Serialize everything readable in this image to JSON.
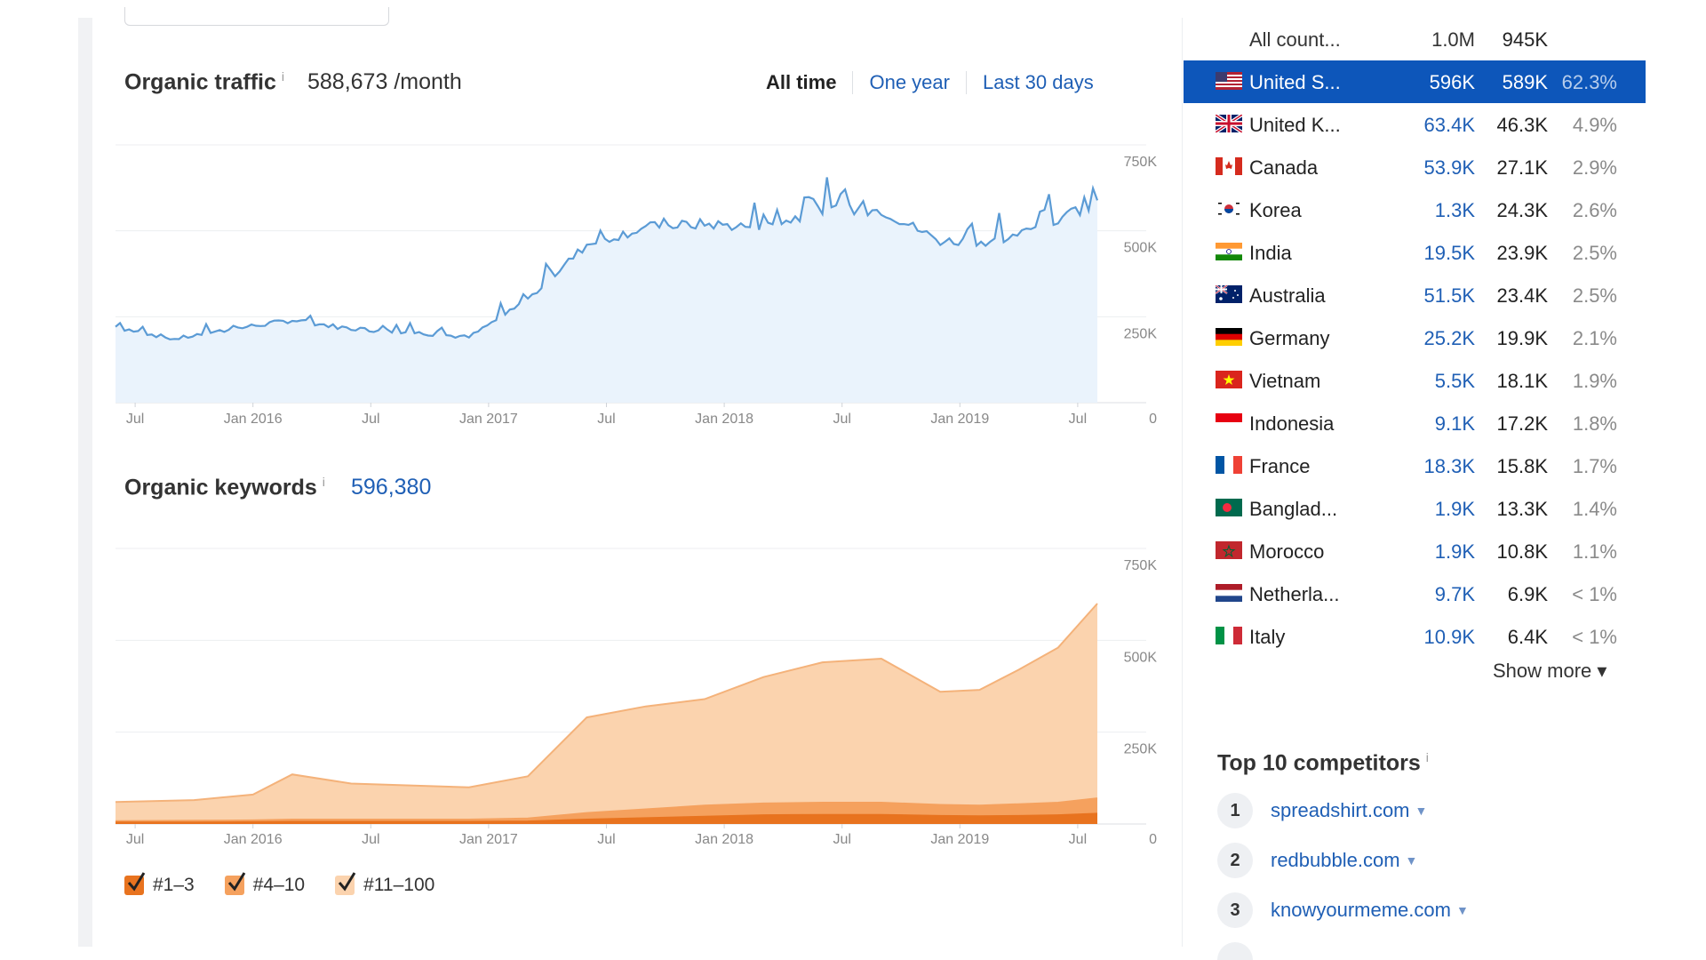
{
  "traffic": {
    "title": "Organic traffic",
    "info_icon": "i",
    "value": "588,673 /month",
    "range_tabs": [
      {
        "label": "All time",
        "active": true
      },
      {
        "label": "One year",
        "active": false
      },
      {
        "label": "Last 30 days",
        "active": false
      }
    ]
  },
  "keywords": {
    "title": "Organic keywords",
    "info_icon": "i",
    "value": "596,380",
    "legend": [
      {
        "label": "#1–3",
        "color": "#e8731f"
      },
      {
        "label": "#4–10",
        "color": "#f5a15e"
      },
      {
        "label": "#11–100",
        "color": "#fbd3ae"
      }
    ]
  },
  "chart_data": [
    {
      "type": "line",
      "x_tick_labels": [
        "Jul",
        "Jan 2016",
        "Jul",
        "Jan 2017",
        "Jul",
        "Jan 2018",
        "Jul",
        "Jan 2019",
        "Jul"
      ],
      "y_tick_labels": [
        "750K",
        "500K",
        "250K",
        "0"
      ],
      "ylim": [
        0,
        750000
      ],
      "grid": true,
      "series": [
        {
          "color": "#5b9bd5",
          "x": [
            "2015-06",
            "2015-09",
            "2015-12",
            "2016-03",
            "2016-06",
            "2016-09",
            "2016-12",
            "2017-03",
            "2017-06",
            "2017-09",
            "2017-12",
            "2018-03",
            "2018-06",
            "2018-09",
            "2018-12",
            "2019-03",
            "2019-06",
            "2019-08"
          ],
          "values": [
            220000,
            185000,
            215000,
            240000,
            215000,
            205000,
            190000,
            300000,
            460000,
            510000,
            520000,
            510000,
            560000,
            560000,
            470000,
            470000,
            530000,
            588673
          ]
        }
      ]
    },
    {
      "type": "area",
      "x_tick_labels": [
        "Jul",
        "Jan 2016",
        "Jul",
        "Jan 2017",
        "Jul",
        "Jan 2018",
        "Jul",
        "Jan 2019",
        "Jul"
      ],
      "y_tick_labels": [
        "750K",
        "500K",
        "250K",
        "0"
      ],
      "ylim": [
        0,
        750000
      ],
      "grid": true,
      "x": [
        "2015-06",
        "2015-10",
        "2016-01",
        "2016-03",
        "2016-06",
        "2016-09",
        "2016-12",
        "2017-03",
        "2017-06",
        "2017-09",
        "2017-12",
        "2018-03",
        "2018-06",
        "2018-09",
        "2018-12",
        "2019-02",
        "2019-04",
        "2019-06",
        "2019-08"
      ],
      "series": [
        {
          "name": "#1–3",
          "color": "#e8731f",
          "values": [
            4000,
            4000,
            5000,
            6000,
            6000,
            6000,
            6000,
            7000,
            12000,
            16000,
            20000,
            24000,
            25000,
            25000,
            22000,
            21000,
            22000,
            24000,
            28000
          ]
        },
        {
          "name": "#4–10",
          "color": "#f5a15e",
          "values": [
            8000,
            9000,
            10000,
            12000,
            12000,
            12000,
            12000,
            15000,
            30000,
            40000,
            50000,
            56000,
            58000,
            58000,
            52000,
            50000,
            54000,
            58000,
            70000
          ]
        },
        {
          "name": "#11–100",
          "color": "#fbd3ae",
          "values": [
            60000,
            65000,
            80000,
            135000,
            110000,
            105000,
            100000,
            130000,
            290000,
            320000,
            340000,
            400000,
            440000,
            450000,
            360000,
            365000,
            420000,
            480000,
            600000
          ]
        }
      ]
    }
  ],
  "countries": {
    "header": {
      "name": "All count...",
      "v1": "1.0M",
      "v2": "945K",
      "pct": ""
    },
    "rows": [
      {
        "flag": "us",
        "name": "United S...",
        "v1": "596K",
        "v2": "589K",
        "pct": "62.3%",
        "selected": true
      },
      {
        "flag": "gb",
        "name": "United K...",
        "v1": "63.4K",
        "v2": "46.3K",
        "pct": "4.9%"
      },
      {
        "flag": "ca",
        "name": "Canada",
        "v1": "53.9K",
        "v2": "27.1K",
        "pct": "2.9%"
      },
      {
        "flag": "kr",
        "name": "Korea",
        "v1": "1.3K",
        "v2": "24.3K",
        "pct": "2.6%"
      },
      {
        "flag": "in",
        "name": "India",
        "v1": "19.5K",
        "v2": "23.9K",
        "pct": "2.5%"
      },
      {
        "flag": "au",
        "name": "Australia",
        "v1": "51.5K",
        "v2": "23.4K",
        "pct": "2.5%"
      },
      {
        "flag": "de",
        "name": "Germany",
        "v1": "25.2K",
        "v2": "19.9K",
        "pct": "2.1%"
      },
      {
        "flag": "vn",
        "name": "Vietnam",
        "v1": "5.5K",
        "v2": "18.1K",
        "pct": "1.9%"
      },
      {
        "flag": "id",
        "name": "Indonesia",
        "v1": "9.1K",
        "v2": "17.2K",
        "pct": "1.8%"
      },
      {
        "flag": "fr",
        "name": "France",
        "v1": "18.3K",
        "v2": "15.8K",
        "pct": "1.7%"
      },
      {
        "flag": "bd",
        "name": "Banglad...",
        "v1": "1.9K",
        "v2": "13.3K",
        "pct": "1.4%"
      },
      {
        "flag": "ma",
        "name": "Morocco",
        "v1": "1.9K",
        "v2": "10.8K",
        "pct": "1.1%"
      },
      {
        "flag": "nl",
        "name": "Netherla...",
        "v1": "9.7K",
        "v2": "6.9K",
        "pct": "< 1%"
      },
      {
        "flag": "it",
        "name": "Italy",
        "v1": "10.9K",
        "v2": "6.4K",
        "pct": "< 1%"
      }
    ],
    "show_more": "Show more ▾"
  },
  "competitors": {
    "title": "Top 10 competitors",
    "info_icon": "i",
    "items": [
      {
        "rank": "1",
        "domain": "spreadshirt.com"
      },
      {
        "rank": "2",
        "domain": "redbubble.com"
      },
      {
        "rank": "3",
        "domain": "knowyourmeme.com"
      }
    ],
    "caret": "▼"
  }
}
